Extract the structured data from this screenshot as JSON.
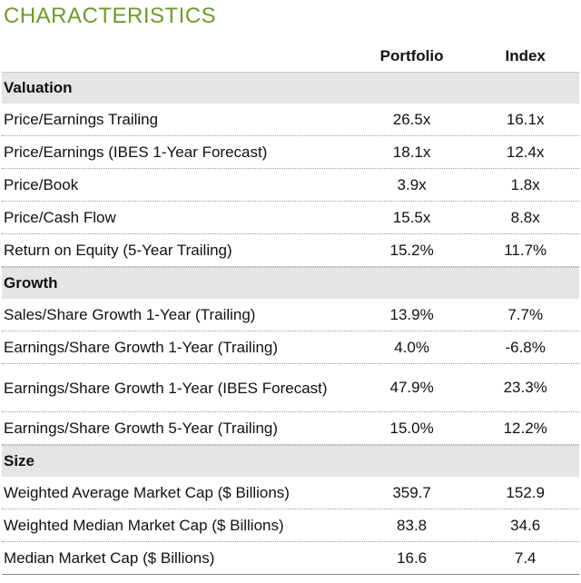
{
  "title": "CHARACTERISTICS",
  "columns": {
    "portfolio": "Portfolio",
    "index": "Index"
  },
  "sections": {
    "valuation": {
      "label": "Valuation",
      "rows": [
        {
          "label": "Price/Earnings Trailing",
          "portfolio": "26.5x",
          "index": "16.1x"
        },
        {
          "label": "Price/Earnings (IBES 1-Year Forecast)",
          "portfolio": "18.1x",
          "index": "12.4x"
        },
        {
          "label": "Price/Book",
          "portfolio": "3.9x",
          "index": "1.8x"
        },
        {
          "label": "Price/Cash Flow",
          "portfolio": "15.5x",
          "index": "8.8x"
        },
        {
          "label": "Return on Equity (5-Year Trailing)",
          "portfolio": "15.2%",
          "index": "11.7%"
        }
      ]
    },
    "growth": {
      "label": "Growth",
      "rows": [
        {
          "label": "Sales/Share Growth 1-Year (Trailing)",
          "portfolio": "13.9%",
          "index": "7.7%"
        },
        {
          "label": "Earnings/Share Growth 1-Year (Trailing)",
          "portfolio": "4.0%",
          "index": "-6.8%"
        },
        {
          "label": "Earnings/Share Growth 1-Year (IBES Forecast)",
          "portfolio": "47.9%",
          "index": "23.3%"
        },
        {
          "label": "Earnings/Share Growth 5-Year (Trailing)",
          "portfolio": "15.0%",
          "index": "12.2%"
        }
      ]
    },
    "size": {
      "label": "Size",
      "rows": [
        {
          "label": "Weighted Average Market Cap ($ Billions)",
          "portfolio": "359.7",
          "index": "152.9"
        },
        {
          "label": "Weighted Median Market Cap ($ Billions)",
          "portfolio": "83.8",
          "index": "34.6"
        },
        {
          "label": "Median Market Cap ($ Billions)",
          "portfolio": "16.6",
          "index": "7.4"
        }
      ]
    }
  }
}
